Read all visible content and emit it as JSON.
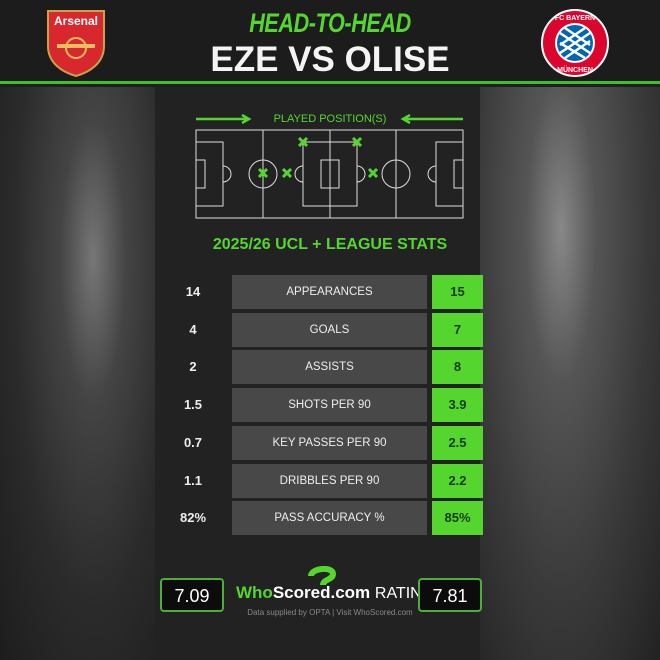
{
  "header": {
    "kicker": "HEAD-TO-HEAD",
    "title": "EZE VS OLISE",
    "left_crest_text": "Arsenal",
    "right_crest_text": "FC BAYERN MÜNCHEN"
  },
  "positions_label": "PLAYED POSITION(S)",
  "stats_title": "2025/26 UCL + LEAGUE STATS",
  "stats": [
    {
      "label": "APPEARANCES",
      "left": "14",
      "right": "15"
    },
    {
      "label": "GOALS",
      "left": "4",
      "right": "7"
    },
    {
      "label": "ASSISTS",
      "left": "2",
      "right": "8"
    },
    {
      "label": "SHOTS PER 90",
      "left": "1.5",
      "right": "3.9"
    },
    {
      "label": "KEY PASSES PER 90",
      "left": "0.7",
      "right": "2.5"
    },
    {
      "label": "DRIBBLES PER 90",
      "left": "1.1",
      "right": "2.2"
    },
    {
      "label": "PASS ACCURACY %",
      "left": "82%",
      "right": "85%"
    }
  ],
  "rating": {
    "left": "7.09",
    "right": "7.81",
    "brand_who": "Who",
    "brand_scored": "Scored",
    "brand_com": ".com",
    "label": "RATING"
  },
  "credit": "Data supplied by OPTA | Visit WhoScored.com",
  "colors": {
    "accent": "#55d62e",
    "cell": "#484848",
    "background": "#222222"
  }
}
